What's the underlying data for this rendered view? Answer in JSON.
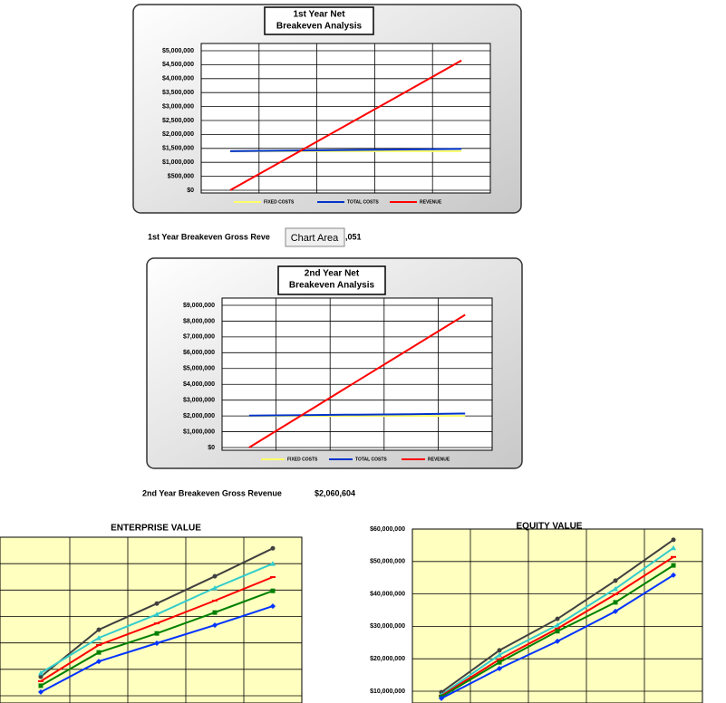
{
  "chart_data": [
    {
      "type": "line",
      "title": [
        "1st Year Net",
        "Breakeven Analysis"
      ],
      "categories": [
        null,
        null,
        null,
        null,
        null
      ],
      "series": [
        {
          "name": "FIXED COSTS",
          "color": "#ffff66",
          "values": [
            1400000,
            1400000,
            1400000,
            1400000,
            1400000
          ]
        },
        {
          "name": "TOTAL COSTS",
          "color": "#0033cc",
          "values": [
            1400000,
            1420000,
            1440000,
            1460000,
            1480000
          ]
        },
        {
          "name": "REVENUE",
          "color": "#ff0000",
          "values": [
            0,
            1160000,
            2320000,
            3480000,
            4650000
          ]
        }
      ],
      "ylim": [
        0,
        5000000
      ],
      "yticks": [
        {
          "value": 0,
          "label": "$0"
        },
        {
          "value": 500000,
          "label": "$500,000"
        },
        {
          "value": 1000000,
          "label": "$1,000,000"
        },
        {
          "value": 1500000,
          "label": "$1,500,000"
        },
        {
          "value": 2000000,
          "label": "$2,000,000"
        },
        {
          "value": 2500000,
          "label": "$2,500,000"
        },
        {
          "value": 3000000,
          "label": "$3,000,000"
        },
        {
          "value": 3500000,
          "label": "$3,500,000"
        },
        {
          "value": 4000000,
          "label": "$4,000,000"
        },
        {
          "value": 4500000,
          "label": "$4,500,000"
        },
        {
          "value": 5000000,
          "label": "$5,000,000"
        }
      ],
      "grid": true,
      "legend": "bottom"
    },
    {
      "type": "line",
      "title": [
        "2nd Year Net",
        "Breakeven Analysis"
      ],
      "categories": [
        null,
        null,
        null,
        null,
        null
      ],
      "series": [
        {
          "name": "FIXED COSTS",
          "color": "#ffff66",
          "values": [
            2000000,
            2000000,
            2000000,
            2000000,
            2000000
          ]
        },
        {
          "name": "TOTAL COSTS",
          "color": "#0033cc",
          "values": [
            2020000,
            2050000,
            2080000,
            2110000,
            2150000
          ]
        },
        {
          "name": "REVENUE",
          "color": "#ff0000",
          "values": [
            0,
            2100000,
            4200000,
            6300000,
            8400000
          ]
        }
      ],
      "ylim": [
        0,
        9000000
      ],
      "yticks": [
        {
          "value": 0,
          "label": "$0"
        },
        {
          "value": 1000000,
          "label": "$1,000,000"
        },
        {
          "value": 2000000,
          "label": "$2,000,000"
        },
        {
          "value": 3000000,
          "label": "$3,000,000"
        },
        {
          "value": 4000000,
          "label": "$4,000,000"
        },
        {
          "value": 5000000,
          "label": "$5,000,000"
        },
        {
          "value": 6000000,
          "label": "$6,000,000"
        },
        {
          "value": 7000000,
          "label": "$7,000,000"
        },
        {
          "value": 8000000,
          "label": "$8,000,000"
        },
        {
          "value": 9000000,
          "label": "$9,000,000"
        }
      ],
      "grid": true,
      "legend": "bottom"
    },
    {
      "type": "line",
      "title": [
        "ENTERPRISE VALUE"
      ],
      "categories": [
        null,
        null,
        null,
        null,
        null
      ],
      "series": [
        {
          "color": "#404040",
          "marker": "circle",
          "values": [
            0.72,
            2.5,
            3.49,
            4.52,
            5.58
          ]
        },
        {
          "color": "#33cccc",
          "marker": "triangle",
          "values": [
            0.86,
            2.19,
            3.08,
            4.08,
            5.0
          ]
        },
        {
          "color": "#ff0000",
          "marker": "dash",
          "values": [
            0.55,
            1.92,
            2.74,
            3.6,
            4.49
          ]
        },
        {
          "color": "#008000",
          "marker": "square",
          "values": [
            0.38,
            1.64,
            2.36,
            3.15,
            3.97
          ]
        },
        {
          "color": "#0033ff",
          "marker": "diamond",
          "values": [
            0.14,
            1.3,
            1.99,
            2.67,
            3.39
          ]
        }
      ],
      "ylim": [
        0,
        6
      ],
      "grid": true
    },
    {
      "type": "line",
      "title": [
        "EQUITY VALUE"
      ],
      "categories": [
        null,
        null,
        null,
        null,
        null
      ],
      "series": [
        {
          "color": "#404040",
          "marker": "circle",
          "values": [
            9700000,
            22600000,
            32300000,
            44100000,
            56700000
          ]
        },
        {
          "color": "#33cccc",
          "marker": "triangle",
          "values": [
            8900000,
            21200000,
            30400000,
            41600000,
            54200000
          ]
        },
        {
          "color": "#ff0000",
          "marker": "dash",
          "values": [
            8600000,
            19800000,
            29300000,
            39900000,
            51400000
          ]
        },
        {
          "color": "#008000",
          "marker": "square",
          "values": [
            8300000,
            18900000,
            28500000,
            37400000,
            48800000
          ]
        },
        {
          "color": "#0033ff",
          "marker": "diamond",
          "values": [
            7800000,
            17000000,
            25400000,
            34600000,
            45800000
          ]
        }
      ],
      "ylim": [
        0,
        60000000
      ],
      "yticks": [
        {
          "value": 10000000,
          "label": "$10,000,000"
        },
        {
          "value": 20000000,
          "label": "$20,000,000"
        },
        {
          "value": 30000000,
          "label": "$30,000,000"
        },
        {
          "value": 40000000,
          "label": "$40,000,000"
        },
        {
          "value": 50000000,
          "label": "$50,000,000"
        },
        {
          "value": 60000000,
          "label": "$60,000,000"
        }
      ],
      "grid": true
    }
  ],
  "notes": {
    "breakeven_1": {
      "label": "1st Year Breakeven Gross Reve",
      "tail": ",051"
    },
    "tooltip": "Chart Area",
    "breakeven_2": {
      "label": "2nd Year Breakeven Gross Revenue",
      "value": "$2,060,604"
    }
  }
}
